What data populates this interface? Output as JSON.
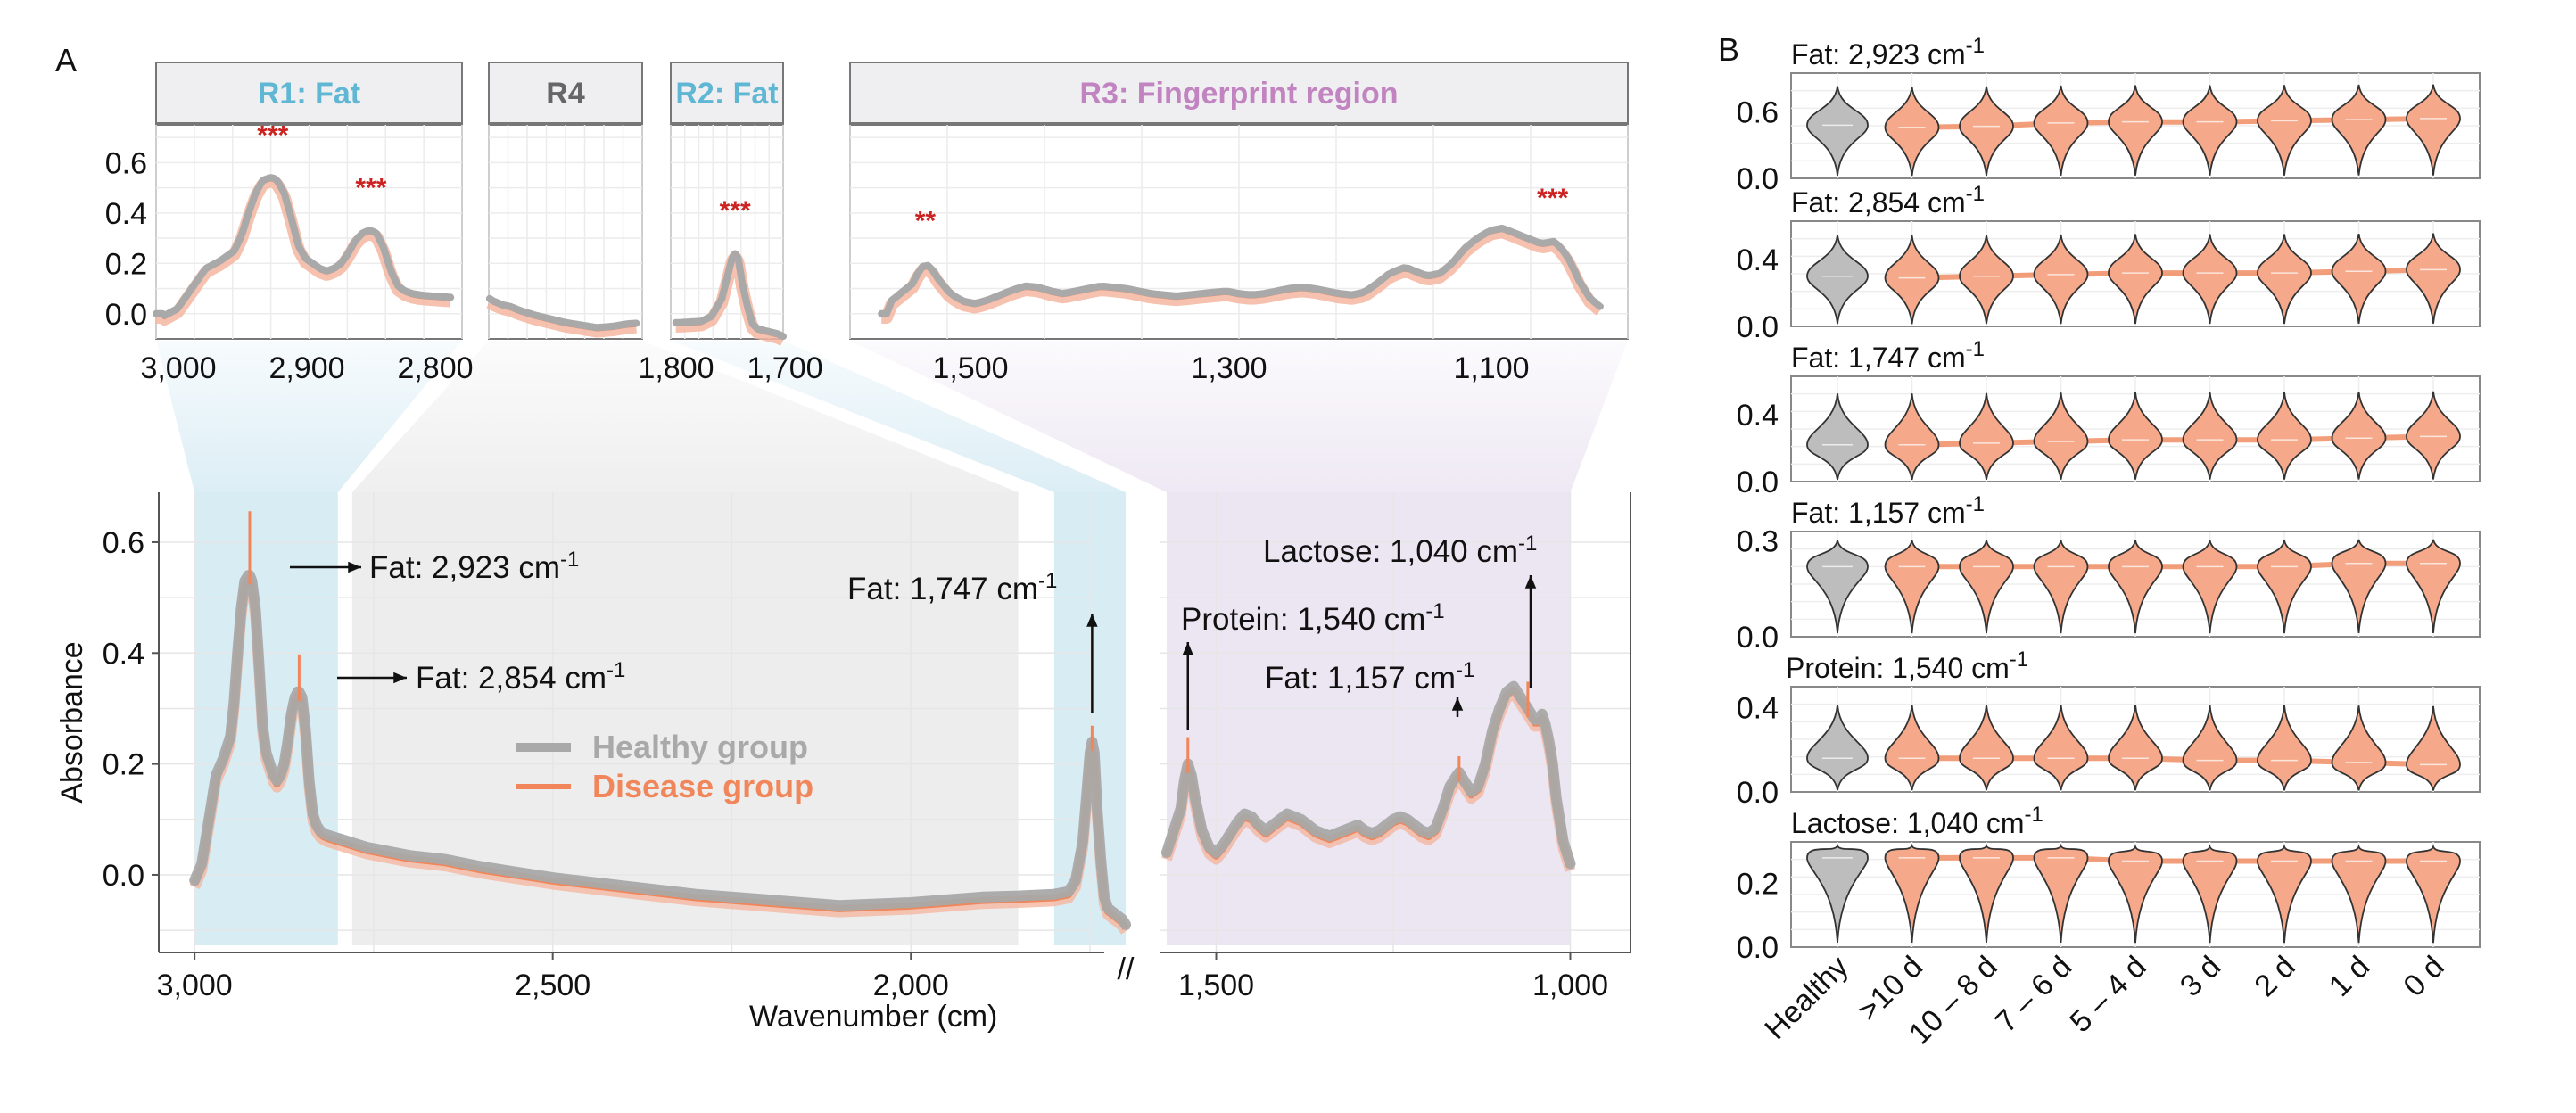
{
  "panels": {
    "a": "A",
    "b": "B"
  },
  "colors": {
    "healthy": "#a9a9a9",
    "disease": "#f0865a",
    "disease_band": "#f4b6a0",
    "sig": "#cc2222",
    "r_fat_bg": "#d8ecf4",
    "r4_bg": "#ededed",
    "r3_bg": "#ece6f2",
    "fat_title": "#5fb7d4",
    "r4_title": "#666666",
    "fp_title": "#c184c0"
  },
  "chart_data": [
    {
      "type": "line",
      "title": "",
      "xlabel": "Wavenumber (cm-1)",
      "ylabel": "Absorbance",
      "xlim": [
        3050,
        1740
      ],
      "ylim": [
        -0.14,
        0.69
      ],
      "xticks": [
        "3,000",
        "2,500",
        "2,000",
        "1,500",
        "1,000"
      ],
      "yticks": [
        "0.0",
        "0.2",
        "0.4",
        "0.6"
      ],
      "axis_break": "//",
      "legend": {
        "position": "center",
        "entries": [
          "Healthy group",
          "Disease group"
        ]
      },
      "regions": [
        {
          "label": "R1: Fat",
          "range": [
            3000,
            2800
          ]
        },
        {
          "label": "R4",
          "range": [
            2780,
            1850
          ]
        },
        {
          "label": "R2: Fat",
          "range": [
            1800,
            1700
          ]
        },
        {
          "label": "R3: Fingerprint region",
          "range": [
            1570,
            1000
          ]
        }
      ],
      "annotations": [
        {
          "label": "Fat: 2,923 cm",
          "sup": "-1",
          "x": 2923,
          "y": 0.54
        },
        {
          "label": "Fat: 2,854 cm",
          "sup": "-1",
          "x": 2854,
          "y": 0.33
        },
        {
          "label": "Fat: 1,747 cm",
          "sup": "-1",
          "x": 1747,
          "y": 0.25
        },
        {
          "label": "Protein: 1,540 cm",
          "sup": "-1",
          "x": 1540,
          "y": 0.24
        },
        {
          "label": "Fat: 1,157 cm",
          "sup": "-1",
          "x": 1157,
          "y": 0.23
        },
        {
          "label": "Lactose: 1,040 cm",
          "sup": "-1",
          "x": 1040,
          "y": 0.33
        }
      ],
      "series": [
        {
          "name": "Healthy group",
          "x": [
            3000,
            2990,
            2980,
            2970,
            2960,
            2950,
            2945,
            2940,
            2935,
            2930,
            2925,
            2923,
            2920,
            2915,
            2910,
            2905,
            2900,
            2895,
            2890,
            2885,
            2880,
            2875,
            2870,
            2865,
            2860,
            2856,
            2854,
            2850,
            2845,
            2840,
            2835,
            2830,
            2825,
            2820,
            2815,
            2810,
            2805,
            2800,
            2790,
            2780,
            2760,
            2700,
            2650,
            2600,
            2550,
            2500,
            2400,
            2300,
            2200,
            2100,
            2000,
            1950,
            1900,
            1850,
            1800,
            1780,
            1770,
            1760,
            1755,
            1750,
            1747,
            1744,
            1740,
            1735,
            1730,
            1725,
            1720,
            1715,
            1710,
            1705,
            1700
          ],
          "y": [
            -0.01,
            0.02,
            0.1,
            0.18,
            0.21,
            0.25,
            0.31,
            0.4,
            0.48,
            0.53,
            0.54,
            0.54,
            0.53,
            0.48,
            0.38,
            0.27,
            0.22,
            0.2,
            0.18,
            0.17,
            0.18,
            0.2,
            0.24,
            0.29,
            0.32,
            0.33,
            0.33,
            0.32,
            0.26,
            0.17,
            0.11,
            0.09,
            0.08,
            0.075,
            0.072,
            0.07,
            0.068,
            0.066,
            0.062,
            0.058,
            0.05,
            0.035,
            0.028,
            0.015,
            0.005,
            -0.005,
            -0.02,
            -0.035,
            -0.045,
            -0.055,
            -0.05,
            -0.045,
            -0.04,
            -0.038,
            -0.035,
            -0.03,
            -0.01,
            0.06,
            0.14,
            0.22,
            0.24,
            0.22,
            0.12,
            0.03,
            -0.04,
            -0.06,
            -0.065,
            -0.07,
            -0.075,
            -0.08,
            -0.09
          ]
        },
        {
          "name": "Disease group",
          "x": [
            1570,
            1560,
            1550,
            1545,
            1540,
            1535,
            1530,
            1520,
            1510,
            1500,
            1490,
            1480,
            1470,
            1460,
            1450,
            1440,
            1430,
            1420,
            1410,
            1400,
            1390,
            1380,
            1370,
            1360,
            1350,
            1340,
            1330,
            1320,
            1310,
            1300,
            1290,
            1280,
            1270,
            1260,
            1250,
            1240,
            1230,
            1220,
            1210,
            1200,
            1190,
            1180,
            1170,
            1160,
            1157,
            1150,
            1140,
            1130,
            1120,
            1110,
            1100,
            1090,
            1080,
            1070,
            1060,
            1050,
            1045,
            1040,
            1035,
            1030,
            1025,
            1020,
            1010,
            1000
          ],
          "y": [
            0.04,
            0.08,
            0.12,
            0.17,
            0.2,
            0.18,
            0.14,
            0.08,
            0.05,
            0.04,
            0.055,
            0.075,
            0.095,
            0.11,
            0.105,
            0.09,
            0.08,
            0.09,
            0.1,
            0.11,
            0.105,
            0.1,
            0.09,
            0.08,
            0.075,
            0.07,
            0.075,
            0.08,
            0.085,
            0.09,
            0.08,
            0.075,
            0.08,
            0.09,
            0.1,
            0.105,
            0.1,
            0.09,
            0.08,
            0.075,
            0.085,
            0.12,
            0.16,
            0.18,
            0.185,
            0.17,
            0.15,
            0.16,
            0.2,
            0.26,
            0.3,
            0.33,
            0.34,
            0.32,
            0.3,
            0.28,
            0.28,
            0.29,
            0.27,
            0.24,
            0.2,
            0.14,
            0.06,
            0.02
          ]
        }
      ]
    },
    {
      "type": "line",
      "title": "R1: Fat",
      "xlim": [
        3005,
        2790
      ],
      "ylim": [
        -0.1,
        0.75
      ],
      "xticks": [
        "3,000",
        "2,900",
        "2,800"
      ],
      "yticks": [
        "0.0",
        "0.2",
        "0.4",
        "0.6"
      ],
      "significance": [
        {
          "label": "***",
          "x": 2923
        },
        {
          "label": "***",
          "x": 2854
        }
      ]
    },
    {
      "type": "line",
      "title": "R4",
      "xlim": [
        2790,
        1810
      ],
      "ylim": [
        -0.1,
        0.75
      ]
    },
    {
      "type": "line",
      "title": "R2: Fat",
      "xlim": [
        1810,
        1700
      ],
      "ylim": [
        -0.1,
        0.75
      ],
      "xticks": [
        "1,800",
        "1,700"
      ],
      "significance": [
        {
          "label": "***",
          "x": 1747
        }
      ]
    },
    {
      "type": "line",
      "title": "R3: Fingerprint region",
      "xlim": [
        1600,
        980
      ],
      "ylim": [
        -0.1,
        0.75
      ],
      "xticks": [
        "1,500",
        "1,300",
        "1,100"
      ],
      "significance": [
        {
          "label": "**",
          "x": 1540
        },
        {
          "label": "***",
          "x": 1040
        }
      ]
    },
    {
      "type": "violin",
      "categories": [
        "Healthy",
        ">10 d",
        "10 – 8 d",
        "7 – 6 d",
        "5 – 4 d",
        "3 d",
        "2 d",
        "1 d",
        "0 d"
      ],
      "panels": [
        {
          "title": "Fat: 2,923 cm",
          "sup": "-1",
          "yticks": [
            "0.0",
            "0.6"
          ],
          "ylim": [
            0,
            0.95
          ],
          "medians": [
            0.48,
            0.46,
            0.47,
            0.5,
            0.51,
            0.51,
            0.52,
            0.53,
            0.54
          ]
        },
        {
          "title": "Fat: 2,854 cm",
          "sup": "-1",
          "yticks": [
            "0.0",
            "0.4"
          ],
          "ylim": [
            0,
            0.63
          ],
          "medians": [
            0.3,
            0.29,
            0.3,
            0.31,
            0.32,
            0.32,
            0.32,
            0.33,
            0.34
          ]
        },
        {
          "title": "Fat: 1,747 cm",
          "sup": "-1",
          "yticks": [
            "0.0",
            "0.4"
          ],
          "ylim": [
            0,
            0.63
          ],
          "medians": [
            0.22,
            0.22,
            0.23,
            0.24,
            0.25,
            0.25,
            0.25,
            0.26,
            0.27
          ]
        },
        {
          "title": "Fat: 1,157 cm",
          "sup": "-1",
          "yticks": [
            "0.0",
            "0.3"
          ],
          "ylim": [
            0,
            0.33
          ],
          "medians": [
            0.22,
            0.22,
            0.22,
            0.22,
            0.22,
            0.22,
            0.22,
            0.23,
            0.23
          ]
        },
        {
          "title": "Protein: 1,540 cm",
          "sup": "-1",
          "yticks": [
            "0.0",
            "0.4"
          ],
          "ylim": [
            0,
            0.5
          ],
          "medians": [
            0.16,
            0.16,
            0.16,
            0.16,
            0.16,
            0.15,
            0.15,
            0.14,
            0.13
          ]
        },
        {
          "title": "Lactose: 1,040 cm",
          "sup": "-1",
          "yticks": [
            "0.0",
            "0.2"
          ],
          "ylim": [
            0,
            0.33
          ],
          "medians": [
            0.28,
            0.28,
            0.28,
            0.28,
            0.27,
            0.27,
            0.27,
            0.27,
            0.27
          ]
        }
      ]
    }
  ]
}
